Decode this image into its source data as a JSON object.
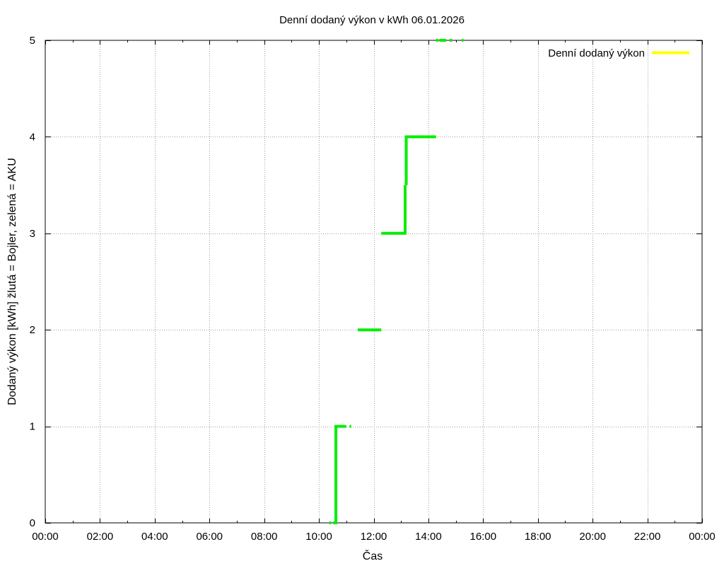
{
  "chart_data": {
    "type": "line",
    "title": "Denní dodaný výkon v kWh 06.01.2026",
    "xlabel": "Čas",
    "ylabel": "Dodaný výkon [kWh]  žlutá = Bojler, zelená = AKU",
    "xlim": [
      0,
      24
    ],
    "ylim": [
      0,
      5
    ],
    "x_ticks": [
      "00:00",
      "02:00",
      "04:00",
      "06:00",
      "08:00",
      "10:00",
      "12:00",
      "14:00",
      "16:00",
      "18:00",
      "20:00",
      "22:00",
      "00:00"
    ],
    "y_ticks": [
      "0",
      "1",
      "2",
      "3",
      "4",
      "5"
    ],
    "grid": true,
    "legend_position": "top-right",
    "series": [
      {
        "name": "Denní dodaný výkon",
        "color": "#ffff00",
        "points": []
      },
      {
        "color": "#00ee00",
        "segments": [
          [
            [
              10.38,
              0
            ],
            [
              10.44,
              0
            ]
          ],
          [
            [
              10.52,
              0
            ],
            [
              10.62,
              0
            ],
            [
              10.62,
              1
            ],
            [
              11.0,
              1
            ]
          ],
          [
            [
              11.12,
              1
            ],
            [
              11.18,
              1
            ]
          ],
          [
            [
              11.42,
              2
            ],
            [
              12.28,
              2
            ]
          ],
          [
            [
              12.28,
              3
            ],
            [
              13.15,
              3
            ],
            [
              13.15,
              3.5
            ]
          ],
          [
            [
              13.19,
              3.5
            ],
            [
              13.19,
              4
            ],
            [
              14.28,
              4
            ]
          ],
          [
            [
              14.28,
              5
            ],
            [
              14.36,
              5
            ]
          ],
          [
            [
              14.4,
              5
            ],
            [
              14.65,
              5
            ]
          ],
          [
            [
              14.78,
              5
            ],
            [
              14.86,
              5
            ]
          ],
          [
            [
              15.22,
              5
            ],
            [
              15.28,
              5
            ]
          ]
        ]
      }
    ]
  }
}
